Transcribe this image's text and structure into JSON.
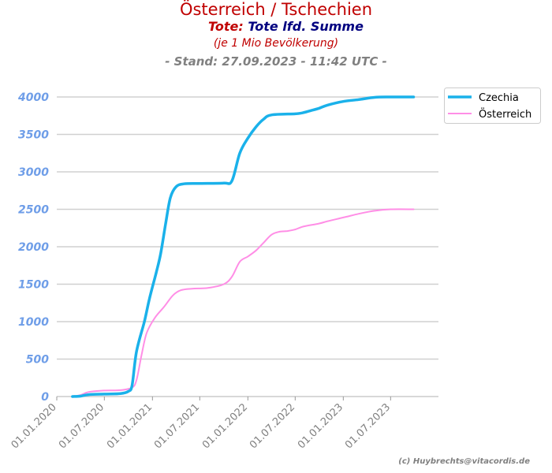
{
  "header": {
    "title": "Österreich / Tschechien",
    "subtitle_prefix": "Tote:",
    "subtitle_main": "Tote lfd. Summe",
    "note": "(je 1 Mio Bevölkerung)",
    "stand": "- Stand: 27.09.2023 - 11:42 UTC -"
  },
  "copyright": "(c) Huybrechts@vitacordis.de",
  "colors": {
    "title": "#c00000",
    "subtitle_main": "#000080",
    "axis_y_labels": "#6f9ee8",
    "axis_x_labels": "#808080",
    "grid": "#d0d0d0",
    "czechia": "#1ab1ea",
    "oesterreich": "#ff8ee6"
  },
  "chart_data": {
    "type": "line",
    "x_type": "date",
    "xlim": [
      "2020-01-01",
      "2023-12-31"
    ],
    "ylim": [
      0,
      4000
    ],
    "yticks": [
      0,
      500,
      1000,
      1500,
      2000,
      2500,
      3000,
      3500,
      4000
    ],
    "xticks": [
      {
        "date": "2020-01-01",
        "label": "01.01.2020"
      },
      {
        "date": "2020-07-01",
        "label": "01.07.2020"
      },
      {
        "date": "2021-01-01",
        "label": "01.01.2021"
      },
      {
        "date": "2021-07-01",
        "label": "01.07.2021"
      },
      {
        "date": "2022-01-01",
        "label": "01.01.2022"
      },
      {
        "date": "2022-07-01",
        "label": "01.07.2022"
      },
      {
        "date": "2023-01-01",
        "label": "01.01.2023"
      },
      {
        "date": "2023-07-01",
        "label": "01.07.2023"
      }
    ],
    "grid": true,
    "legend_position": "top-right",
    "series": [
      {
        "name": "Czechia",
        "color": "#1ab1ea",
        "points": [
          [
            "2020-03-01",
            0
          ],
          [
            "2020-04-01",
            5
          ],
          [
            "2020-05-01",
            25
          ],
          [
            "2020-07-01",
            33
          ],
          [
            "2020-09-01",
            40
          ],
          [
            "2020-10-01",
            70
          ],
          [
            "2020-10-15",
            150
          ],
          [
            "2020-11-01",
            600
          ],
          [
            "2020-12-01",
            1000
          ],
          [
            "2020-12-20",
            1300
          ],
          [
            "2021-01-15",
            1650
          ],
          [
            "2021-02-01",
            1900
          ],
          [
            "2021-02-20",
            2300
          ],
          [
            "2021-03-10",
            2650
          ],
          [
            "2021-04-01",
            2800
          ],
          [
            "2021-05-01",
            2840
          ],
          [
            "2021-07-01",
            2845
          ],
          [
            "2021-10-01",
            2850
          ],
          [
            "2021-11-01",
            2880
          ],
          [
            "2021-12-01",
            3250
          ],
          [
            "2022-01-01",
            3450
          ],
          [
            "2022-02-01",
            3600
          ],
          [
            "2022-03-01",
            3700
          ],
          [
            "2022-04-01",
            3760
          ],
          [
            "2022-07-01",
            3775
          ],
          [
            "2022-08-01",
            3790
          ],
          [
            "2022-09-01",
            3820
          ],
          [
            "2022-10-01",
            3850
          ],
          [
            "2022-11-01",
            3890
          ],
          [
            "2023-01-01",
            3940
          ],
          [
            "2023-03-01",
            3965
          ],
          [
            "2023-05-01",
            3995
          ],
          [
            "2023-07-01",
            4000
          ],
          [
            "2023-09-27",
            4000
          ]
        ]
      },
      {
        "name": "Österreich",
        "color": "#ff8ee6",
        "points": [
          [
            "2020-03-01",
            0
          ],
          [
            "2020-04-01",
            20
          ],
          [
            "2020-05-01",
            60
          ],
          [
            "2020-07-01",
            80
          ],
          [
            "2020-09-01",
            85
          ],
          [
            "2020-10-15",
            120
          ],
          [
            "2020-11-01",
            220
          ],
          [
            "2020-11-20",
            550
          ],
          [
            "2020-12-10",
            850
          ],
          [
            "2021-01-10",
            1050
          ],
          [
            "2021-02-15",
            1200
          ],
          [
            "2021-03-20",
            1350
          ],
          [
            "2021-04-20",
            1420
          ],
          [
            "2021-06-01",
            1440
          ],
          [
            "2021-08-01",
            1450
          ],
          [
            "2021-10-01",
            1500
          ],
          [
            "2021-11-01",
            1600
          ],
          [
            "2021-12-01",
            1800
          ],
          [
            "2022-01-01",
            1870
          ],
          [
            "2022-02-01",
            1950
          ],
          [
            "2022-03-01",
            2050
          ],
          [
            "2022-04-01",
            2160
          ],
          [
            "2022-05-01",
            2200
          ],
          [
            "2022-06-01",
            2210
          ],
          [
            "2022-07-01",
            2230
          ],
          [
            "2022-08-01",
            2270
          ],
          [
            "2022-10-01",
            2310
          ],
          [
            "2022-11-01",
            2340
          ],
          [
            "2023-01-01",
            2390
          ],
          [
            "2023-03-01",
            2440
          ],
          [
            "2023-05-01",
            2480
          ],
          [
            "2023-07-01",
            2500
          ],
          [
            "2023-09-27",
            2500
          ]
        ]
      }
    ]
  }
}
